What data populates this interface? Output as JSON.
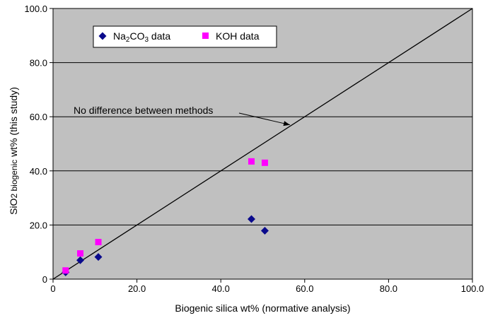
{
  "chart_data": {
    "type": "scatter",
    "title": "",
    "xlabel": "Biogenic silica wt% (normative analysis)",
    "ylabel": {
      "main": "SiO",
      "sub": "2",
      "sub_text": " biogenic",
      "rest": " wt% (this study)"
    },
    "xlim": [
      0,
      100
    ],
    "ylim": [
      0,
      100
    ],
    "x_ticks": [
      "0",
      "20.0",
      "40.0",
      "60.0",
      "80.0",
      "100.0"
    ],
    "y_ticks": [
      "0",
      "20.0",
      "40.0",
      "60.0",
      "80.0",
      "100.0"
    ],
    "grid": "horizontal",
    "legend_position": "top-left",
    "series": [
      {
        "name": "Na2CO3 data",
        "legend": {
          "pre": "Na",
          "sub1": "2",
          "mid": "CO",
          "sub2": "3",
          "post": " data"
        },
        "marker": "diamond",
        "color": "#0a0a8c",
        "points": [
          {
            "x": 3.0,
            "y": 2.5
          },
          {
            "x": 6.5,
            "y": 7.0
          },
          {
            "x": 10.8,
            "y": 8.2
          },
          {
            "x": 47.3,
            "y": 22.2
          },
          {
            "x": 50.5,
            "y": 17.9
          }
        ]
      },
      {
        "name": "KOH data",
        "legend": {
          "pre": "KOH data"
        },
        "marker": "square",
        "color": "#ff00ff",
        "points": [
          {
            "x": 3.0,
            "y": 3.2
          },
          {
            "x": 6.5,
            "y": 9.5
          },
          {
            "x": 10.8,
            "y": 13.7
          },
          {
            "x": 47.3,
            "y": 43.5
          },
          {
            "x": 50.5,
            "y": 43.0
          }
        ]
      }
    ],
    "reference_line": {
      "from": [
        0,
        0
      ],
      "to": [
        100,
        100
      ]
    },
    "annotations": [
      {
        "text": "No difference between methods",
        "arrow_to": [
          56.5,
          57.0
        ]
      }
    ],
    "colors": {
      "plot_background": "#c0c0c0",
      "gridline": "#000000"
    }
  }
}
